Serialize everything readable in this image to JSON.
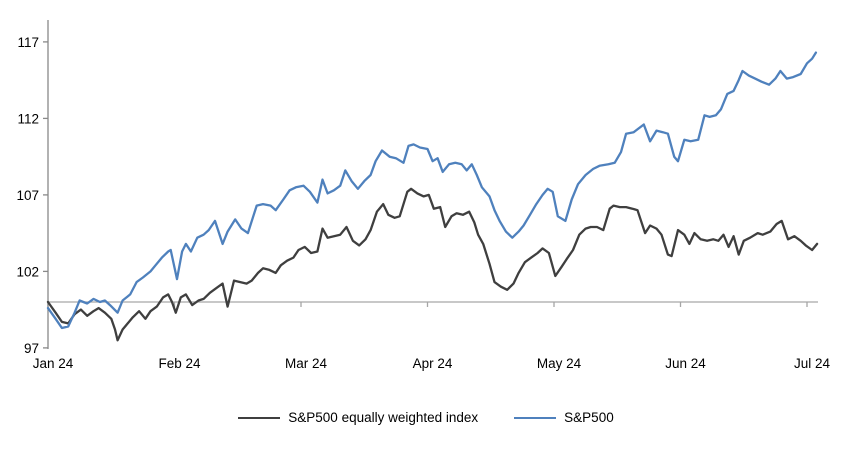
{
  "chart_data": {
    "type": "line",
    "title": "",
    "xlabel": "",
    "ylabel": "",
    "x_axis": {
      "tick_labels": [
        "Jan 24",
        "Feb 24",
        "Mar 24",
        "Apr 24",
        "May 24",
        "Jun 24",
        "Jul 24"
      ],
      "tick_positions_months": [
        0,
        1,
        2,
        3,
        4,
        5,
        6
      ],
      "axis_crosses_at_value": 100,
      "label_position": "low"
    },
    "y_axis": {
      "ticks": [
        97,
        102,
        107,
        112,
        117
      ],
      "range": [
        97,
        118.4
      ],
      "grid": false
    },
    "legend_position": "bottom-center",
    "series": [
      {
        "name": "S&P500 equally weighted index",
        "color": "#3f3f3f",
        "points": [
          [
            0,
            100.0
          ],
          [
            0.06,
            99.3
          ],
          [
            0.11,
            98.7
          ],
          [
            0.16,
            98.6
          ],
          [
            0.21,
            99.2
          ],
          [
            0.26,
            99.5
          ],
          [
            0.31,
            99.1
          ],
          [
            0.36,
            99.4
          ],
          [
            0.4,
            99.6
          ],
          [
            0.45,
            99.3
          ],
          [
            0.5,
            98.9
          ],
          [
            0.53,
            98.2
          ],
          [
            0.55,
            97.5
          ],
          [
            0.59,
            98.2
          ],
          [
            0.63,
            98.6
          ],
          [
            0.67,
            99.0
          ],
          [
            0.72,
            99.4
          ],
          [
            0.77,
            98.9
          ],
          [
            0.81,
            99.4
          ],
          [
            0.86,
            99.7
          ],
          [
            0.91,
            100.3
          ],
          [
            0.95,
            100.5
          ],
          [
            0.98,
            100.0
          ],
          [
            1.01,
            99.3
          ],
          [
            1.05,
            100.3
          ],
          [
            1.09,
            100.5
          ],
          [
            1.14,
            99.8
          ],
          [
            1.19,
            100.1
          ],
          [
            1.23,
            100.2
          ],
          [
            1.28,
            100.6
          ],
          [
            1.33,
            100.9
          ],
          [
            1.38,
            101.2
          ],
          [
            1.42,
            99.7
          ],
          [
            1.47,
            101.4
          ],
          [
            1.52,
            101.3
          ],
          [
            1.57,
            101.2
          ],
          [
            1.61,
            101.4
          ],
          [
            1.66,
            101.9
          ],
          [
            1.7,
            102.2
          ],
          [
            1.75,
            102.1
          ],
          [
            1.8,
            101.9
          ],
          [
            1.84,
            102.4
          ],
          [
            1.89,
            102.7
          ],
          [
            1.94,
            102.9
          ],
          [
            1.98,
            103.4
          ],
          [
            2.03,
            103.6
          ],
          [
            2.08,
            103.2
          ],
          [
            2.13,
            103.3
          ],
          [
            2.17,
            104.8
          ],
          [
            2.21,
            104.2
          ],
          [
            2.26,
            104.3
          ],
          [
            2.31,
            104.4
          ],
          [
            2.36,
            104.9
          ],
          [
            2.41,
            104.0
          ],
          [
            2.46,
            103.7
          ],
          [
            2.51,
            104.1
          ],
          [
            2.55,
            104.7
          ],
          [
            2.6,
            105.9
          ],
          [
            2.65,
            106.4
          ],
          [
            2.69,
            105.7
          ],
          [
            2.74,
            105.5
          ],
          [
            2.78,
            105.6
          ],
          [
            2.84,
            107.2
          ],
          [
            2.87,
            107.4
          ],
          [
            2.92,
            107.1
          ],
          [
            2.97,
            106.9
          ],
          [
            3.01,
            107.0
          ],
          [
            3.05,
            106.1
          ],
          [
            3.1,
            106.2
          ],
          [
            3.14,
            104.9
          ],
          [
            3.19,
            105.6
          ],
          [
            3.23,
            105.8
          ],
          [
            3.28,
            105.7
          ],
          [
            3.33,
            105.9
          ],
          [
            3.37,
            105.2
          ],
          [
            3.4,
            104.4
          ],
          [
            3.44,
            103.8
          ],
          [
            3.49,
            102.5
          ],
          [
            3.53,
            101.3
          ],
          [
            3.58,
            101.0
          ],
          [
            3.63,
            100.8
          ],
          [
            3.68,
            101.2
          ],
          [
            3.72,
            101.9
          ],
          [
            3.77,
            102.6
          ],
          [
            3.82,
            102.9
          ],
          [
            3.87,
            103.2
          ],
          [
            3.91,
            103.5
          ],
          [
            3.96,
            103.2
          ],
          [
            4.01,
            101.7
          ],
          [
            4.06,
            102.3
          ],
          [
            4.1,
            102.8
          ],
          [
            4.15,
            103.4
          ],
          [
            4.2,
            104.4
          ],
          [
            4.25,
            104.8
          ],
          [
            4.29,
            104.9
          ],
          [
            4.34,
            104.9
          ],
          [
            4.39,
            104.7
          ],
          [
            4.44,
            106.1
          ],
          [
            4.47,
            106.3
          ],
          [
            4.52,
            106.2
          ],
          [
            4.57,
            106.2
          ],
          [
            4.62,
            106.1
          ],
          [
            4.66,
            106.0
          ],
          [
            4.72,
            104.5
          ],
          [
            4.76,
            105.0
          ],
          [
            4.81,
            104.8
          ],
          [
            4.85,
            104.4
          ],
          [
            4.9,
            103.1
          ],
          [
            4.93,
            103.0
          ],
          [
            4.98,
            104.7
          ],
          [
            5.03,
            104.4
          ],
          [
            5.07,
            103.8
          ],
          [
            5.11,
            104.5
          ],
          [
            5.16,
            104.1
          ],
          [
            5.21,
            104.0
          ],
          [
            5.26,
            104.1
          ],
          [
            5.3,
            104.0
          ],
          [
            5.34,
            104.4
          ],
          [
            5.38,
            103.6
          ],
          [
            5.42,
            104.3
          ],
          [
            5.46,
            103.1
          ],
          [
            5.5,
            104.0
          ],
          [
            5.55,
            104.2
          ],
          [
            5.61,
            104.5
          ],
          [
            5.65,
            104.4
          ],
          [
            5.71,
            104.6
          ],
          [
            5.76,
            105.1
          ],
          [
            5.8,
            105.3
          ],
          [
            5.85,
            104.1
          ],
          [
            5.9,
            104.3
          ],
          [
            5.95,
            104.0
          ],
          [
            5.99,
            103.7
          ],
          [
            6.04,
            103.4
          ],
          [
            6.08,
            103.8
          ]
        ]
      },
      {
        "name": "S&P500",
        "color": "#4f81bd",
        "points": [
          [
            0,
            99.6
          ],
          [
            0.06,
            98.9
          ],
          [
            0.11,
            98.3
          ],
          [
            0.16,
            98.4
          ],
          [
            0.21,
            99.3
          ],
          [
            0.25,
            100.1
          ],
          [
            0.31,
            99.9
          ],
          [
            0.36,
            100.2
          ],
          [
            0.41,
            100.0
          ],
          [
            0.45,
            100.1
          ],
          [
            0.49,
            99.8
          ],
          [
            0.55,
            99.3
          ],
          [
            0.59,
            100.1
          ],
          [
            0.65,
            100.5
          ],
          [
            0.7,
            101.3
          ],
          [
            0.75,
            101.6
          ],
          [
            0.81,
            102.0
          ],
          [
            0.85,
            102.4
          ],
          [
            0.9,
            102.9
          ],
          [
            0.95,
            103.3
          ],
          [
            0.97,
            103.4
          ],
          [
            1.02,
            101.5
          ],
          [
            1.06,
            103.3
          ],
          [
            1.09,
            103.8
          ],
          [
            1.13,
            103.3
          ],
          [
            1.18,
            104.2
          ],
          [
            1.23,
            104.4
          ],
          [
            1.27,
            104.7
          ],
          [
            1.32,
            105.3
          ],
          [
            1.38,
            103.8
          ],
          [
            1.42,
            104.6
          ],
          [
            1.48,
            105.4
          ],
          [
            1.53,
            104.8
          ],
          [
            1.58,
            104.5
          ],
          [
            1.65,
            106.3
          ],
          [
            1.7,
            106.4
          ],
          [
            1.76,
            106.3
          ],
          [
            1.8,
            106.0
          ],
          [
            1.86,
            106.7
          ],
          [
            1.91,
            107.3
          ],
          [
            1.96,
            107.5
          ],
          [
            2.02,
            107.6
          ],
          [
            2.07,
            107.2
          ],
          [
            2.13,
            106.5
          ],
          [
            2.17,
            108.0
          ],
          [
            2.21,
            107.1
          ],
          [
            2.26,
            107.3
          ],
          [
            2.31,
            107.6
          ],
          [
            2.35,
            108.6
          ],
          [
            2.4,
            107.9
          ],
          [
            2.45,
            107.4
          ],
          [
            2.5,
            107.9
          ],
          [
            2.55,
            108.3
          ],
          [
            2.59,
            109.2
          ],
          [
            2.64,
            109.9
          ],
          [
            2.7,
            109.5
          ],
          [
            2.75,
            109.4
          ],
          [
            2.81,
            109.1
          ],
          [
            2.85,
            110.2
          ],
          [
            2.89,
            110.3
          ],
          [
            2.94,
            110.1
          ],
          [
            3.0,
            110.0
          ],
          [
            3.04,
            109.2
          ],
          [
            3.08,
            109.4
          ],
          [
            3.12,
            108.5
          ],
          [
            3.17,
            109.0
          ],
          [
            3.22,
            109.1
          ],
          [
            3.27,
            109.0
          ],
          [
            3.31,
            108.6
          ],
          [
            3.35,
            109.0
          ],
          [
            3.39,
            108.3
          ],
          [
            3.43,
            107.5
          ],
          [
            3.49,
            106.9
          ],
          [
            3.53,
            106.0
          ],
          [
            3.57,
            105.3
          ],
          [
            3.62,
            104.6
          ],
          [
            3.67,
            104.2
          ],
          [
            3.72,
            104.6
          ],
          [
            3.76,
            105.0
          ],
          [
            3.81,
            105.7
          ],
          [
            3.86,
            106.4
          ],
          [
            3.91,
            107.0
          ],
          [
            3.95,
            107.4
          ],
          [
            3.99,
            107.2
          ],
          [
            4.03,
            105.6
          ],
          [
            4.09,
            105.3
          ],
          [
            4.14,
            106.7
          ],
          [
            4.19,
            107.7
          ],
          [
            4.25,
            108.3
          ],
          [
            4.31,
            108.7
          ],
          [
            4.36,
            108.9
          ],
          [
            4.43,
            109.0
          ],
          [
            4.48,
            109.1
          ],
          [
            4.53,
            109.8
          ],
          [
            4.57,
            111.0
          ],
          [
            4.63,
            111.1
          ],
          [
            4.71,
            111.6
          ],
          [
            4.76,
            110.5
          ],
          [
            4.81,
            111.2
          ],
          [
            4.86,
            111.1
          ],
          [
            4.9,
            111.0
          ],
          [
            4.95,
            109.5
          ],
          [
            4.98,
            109.2
          ],
          [
            5.03,
            110.6
          ],
          [
            5.08,
            110.5
          ],
          [
            5.14,
            110.6
          ],
          [
            5.19,
            112.2
          ],
          [
            5.23,
            112.1
          ],
          [
            5.28,
            112.2
          ],
          [
            5.32,
            112.6
          ],
          [
            5.37,
            113.6
          ],
          [
            5.42,
            113.8
          ],
          [
            5.46,
            114.5
          ],
          [
            5.49,
            115.1
          ],
          [
            5.54,
            114.8
          ],
          [
            5.59,
            114.6
          ],
          [
            5.64,
            114.4
          ],
          [
            5.7,
            114.2
          ],
          [
            5.75,
            114.6
          ],
          [
            5.79,
            115.1
          ],
          [
            5.84,
            114.6
          ],
          [
            5.89,
            114.7
          ],
          [
            5.95,
            114.9
          ],
          [
            6.0,
            115.6
          ],
          [
            6.04,
            115.9
          ],
          [
            6.07,
            116.3
          ]
        ]
      }
    ]
  },
  "legend": {
    "items": [
      {
        "label": "S&P500 equally weighted index",
        "color": "#3f3f3f"
      },
      {
        "label": "S&P500",
        "color": "#4f81bd"
      }
    ]
  },
  "colors": {
    "axis_line": "#898989",
    "baseline": "#a6a6a6",
    "tick_text": "#000000",
    "background": "#ffffff"
  }
}
